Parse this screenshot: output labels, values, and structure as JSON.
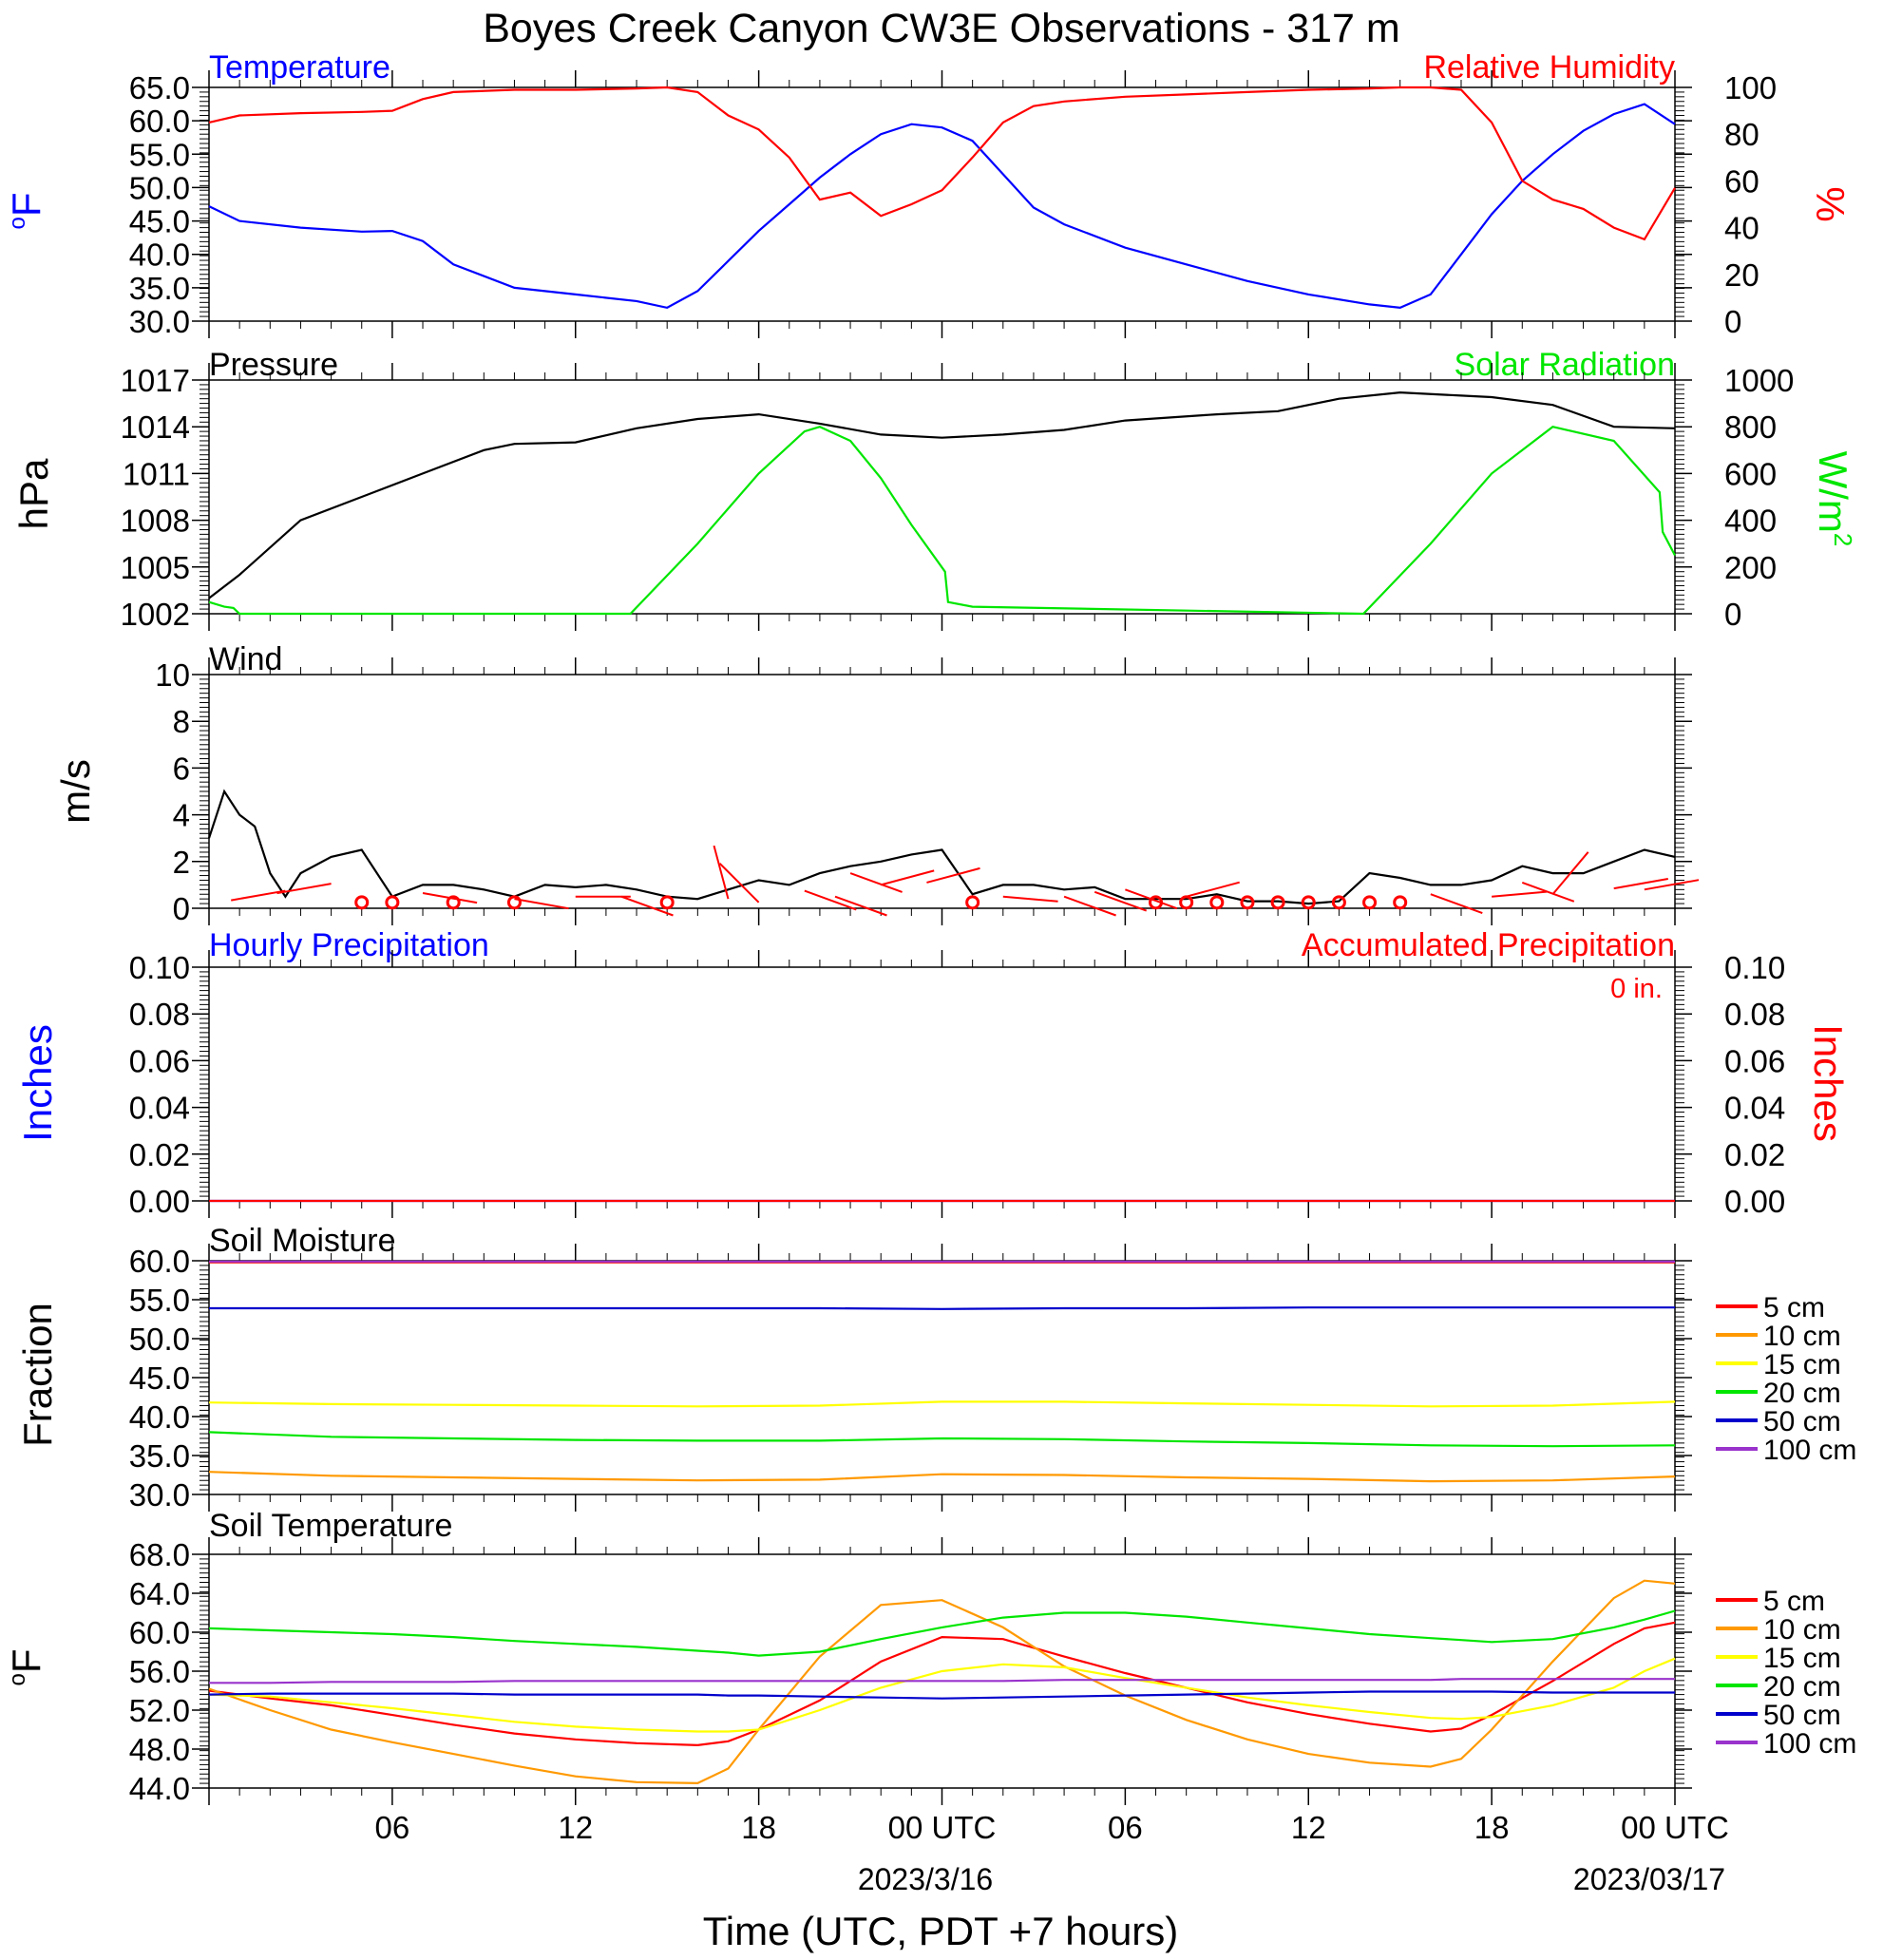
{
  "page": {
    "title": "Boyes Creek Canyon CW3E Observations - 317 m",
    "xlabel": "Time (UTC, PDT +7 hours)",
    "x_ticks": [
      "06",
      "12",
      "18",
      "00 UTC",
      "06",
      "12",
      "18",
      "00 UTC"
    ],
    "x_dates": [
      "2023/3/16",
      "2023/03/17"
    ],
    "units_degF_sup": "o",
    "units_degF": "F",
    "units_wm2_base": "W/m",
    "units_wm2_sup": "2"
  },
  "colors": {
    "blue": "#0000ff",
    "red": "#ff0000",
    "green": "#00e600",
    "black": "#000000",
    "orange": "#ff9900",
    "yellow": "#ffff00",
    "navy": "#0000cc",
    "purple": "#9933cc"
  },
  "chart_data": [
    {
      "id": "temp_rh",
      "type": "line",
      "title_left": "Temperature",
      "title_right": "Relative Humidity",
      "ylabel_left": "F",
      "ylabel_right": "%",
      "ylim_left": [
        30,
        65
      ],
      "ylim_right": [
        0,
        100
      ],
      "yticks_left": [
        "65.0",
        "60.0",
        "55.0",
        "50.0",
        "45.0",
        "40.0",
        "35.0",
        "30.0"
      ],
      "yticks_right": [
        "100",
        "80",
        "60",
        "40",
        "20",
        "0"
      ],
      "x_hours": [
        0,
        1,
        3,
        5,
        6,
        7,
        8,
        10,
        12,
        14,
        15,
        16,
        17,
        18,
        19,
        20,
        21,
        22,
        23,
        24,
        25,
        26,
        27,
        28,
        30,
        32,
        34,
        36,
        38,
        39,
        40,
        41,
        42,
        43,
        44,
        45,
        46,
        47,
        48
      ],
      "series": [
        {
          "name": "Temperature",
          "axis": "left",
          "color": "#0000ff",
          "values": [
            47.2,
            45.0,
            44.0,
            43.4,
            43.5,
            42.0,
            38.5,
            35.0,
            34.0,
            33.0,
            32.0,
            34.5,
            39.0,
            43.5,
            47.5,
            51.5,
            55.0,
            58.0,
            59.5,
            59.0,
            57.0,
            52.0,
            47.0,
            44.5,
            41.0,
            38.5,
            36.0,
            34.0,
            32.5,
            32.0,
            34.0,
            40.0,
            46.0,
            51.0,
            55.0,
            58.5,
            61.0,
            62.5,
            59.5
          ]
        },
        {
          "name": "Relative Humidity",
          "axis": "right",
          "color": "#ff0000",
          "values": [
            85.0,
            88.0,
            89.0,
            89.5,
            90.0,
            95.0,
            98.0,
            99.0,
            99.0,
            99.5,
            100.0,
            98.0,
            88.0,
            82.0,
            70.0,
            52.0,
            55.0,
            45.0,
            50.0,
            56.0,
            70.0,
            85.0,
            92.0,
            94.0,
            96.0,
            97.0,
            98.0,
            99.0,
            99.5,
            100.0,
            100.0,
            99.0,
            85.0,
            60.0,
            52.0,
            48.0,
            40.0,
            35.0,
            57.0
          ]
        }
      ]
    },
    {
      "id": "pressure_solar",
      "type": "line",
      "title_left": "Pressure",
      "title_right": "Solar Radiation",
      "ylabel_left": "hPa",
      "ylim_left": [
        1002,
        1017
      ],
      "ylim_right": [
        0,
        1000
      ],
      "yticks_left": [
        "1017",
        "1014",
        "1011",
        "1008",
        "1005",
        "1002"
      ],
      "yticks_right": [
        "1000",
        "800",
        "600",
        "400",
        "200",
        "0"
      ],
      "x_hours": [
        0,
        1,
        3,
        5,
        7,
        9,
        10,
        12,
        14,
        16,
        18,
        20,
        22,
        24,
        26,
        28,
        30,
        33,
        35,
        37,
        39,
        41,
        42,
        44,
        46,
        48
      ],
      "series": [
        {
          "name": "Pressure",
          "axis": "left",
          "color": "#000000",
          "values": [
            1003.0,
            1004.5,
            1008.0,
            1009.5,
            1011.0,
            1012.5,
            1012.9,
            1013.0,
            1013.9,
            1014.5,
            1014.8,
            1014.2,
            1013.5,
            1013.3,
            1013.5,
            1013.8,
            1014.4,
            1014.8,
            1015.0,
            1015.8,
            1016.2,
            1016.0,
            1015.9,
            1015.4,
            1014.0,
            1013.9
          ]
        },
        {
          "name": "Solar Radiation",
          "axis": "right",
          "color": "#00e600",
          "x_hours": [
            0,
            0.5,
            0.8,
            1.0,
            13.8,
            16,
            18,
            19.5,
            20,
            21,
            22,
            23,
            24.1,
            24.2,
            25,
            37.8,
            40,
            42,
            44,
            46,
            47.5,
            47.6,
            48
          ],
          "values": [
            50,
            30,
            25,
            0,
            0,
            300,
            600,
            780,
            800,
            740,
            580,
            380,
            180,
            50,
            30,
            0,
            300,
            600,
            800,
            740,
            520,
            350,
            250
          ]
        }
      ]
    },
    {
      "id": "wind",
      "type": "line",
      "title_left": "Wind",
      "ylabel_left": "m/s",
      "ylim_left": [
        0,
        10
      ],
      "yticks_left": [
        "10",
        "8",
        "6",
        "4",
        "2",
        "0"
      ],
      "x_hours": [
        0,
        0.5,
        1.0,
        1.5,
        2.0,
        2.5,
        3,
        4,
        5,
        6,
        7,
        8,
        9,
        10,
        11,
        12,
        13,
        14,
        15,
        16,
        17,
        18,
        19,
        20,
        21,
        22,
        23,
        24,
        25,
        26,
        27,
        28,
        29,
        30,
        31,
        32,
        33,
        34,
        35,
        36,
        37,
        38,
        39,
        40,
        41,
        42,
        43,
        44,
        45,
        46,
        47,
        48
      ],
      "series": [
        {
          "name": "Wind Speed",
          "color": "#000000",
          "values": [
            3.0,
            5.0,
            4.0,
            3.5,
            1.5,
            0.5,
            1.5,
            2.2,
            2.5,
            0.5,
            1.0,
            1.0,
            0.8,
            0.5,
            1.0,
            0.9,
            1.0,
            0.8,
            0.5,
            0.4,
            0.8,
            1.2,
            1.0,
            1.5,
            1.8,
            2.0,
            2.3,
            2.5,
            0.6,
            1.0,
            1.0,
            0.8,
            0.9,
            0.4,
            0.4,
            0.4,
            0.6,
            0.3,
            0.3,
            0.2,
            0.3,
            1.5,
            1.3,
            1.0,
            1.0,
            1.2,
            1.8,
            1.5,
            1.5,
            2.0,
            2.5,
            2.2
          ]
        }
      ],
      "barbs": [
        {
          "hour": 2.5,
          "speed": 1.5,
          "dir": 260
        },
        {
          "hour": 4,
          "speed": 2.1,
          "dir": 260
        },
        {
          "hour": 7,
          "speed": 1.3,
          "dir": 100
        },
        {
          "hour": 10,
          "speed": 0.8,
          "dir": 100
        },
        {
          "hour": 12,
          "speed": 1.0,
          "dir": 90
        },
        {
          "hour": 13.5,
          "speed": 1.0,
          "dir": 110
        },
        {
          "hour": 17,
          "speed": 0.8,
          "dir": 345
        },
        {
          "hour": 18,
          "speed": 0.5,
          "dir": 315
        },
        {
          "hour": 19.5,
          "speed": 1.5,
          "dir": 110
        },
        {
          "hour": 20.5,
          "speed": 1.0,
          "dir": 110
        },
        {
          "hour": 21,
          "speed": 3.0,
          "dir": 110
        },
        {
          "hour": 22,
          "speed": 2.0,
          "dir": 75
        },
        {
          "hour": 23.5,
          "speed": 2.2,
          "dir": 75
        },
        {
          "hour": 26,
          "speed": 1.0,
          "dir": 95
        },
        {
          "hour": 28,
          "speed": 1.0,
          "dir": 110
        },
        {
          "hour": 29,
          "speed": 1.4,
          "dir": 110
        },
        {
          "hour": 30,
          "speed": 1.6,
          "dir": 110
        },
        {
          "hour": 32,
          "speed": 1.0,
          "dir": 75
        },
        {
          "hour": 40,
          "speed": 1.2,
          "dir": 110
        },
        {
          "hour": 42,
          "speed": 1.0,
          "dir": 85
        },
        {
          "hour": 43,
          "speed": 2.2,
          "dir": 110
        },
        {
          "hour": 44,
          "speed": 1.2,
          "dir": 40
        },
        {
          "hour": 46,
          "speed": 1.7,
          "dir": 80
        },
        {
          "hour": 47,
          "speed": 1.6,
          "dir": 80
        }
      ],
      "calm_hours": [
        5,
        6,
        8,
        10,
        15,
        25,
        31,
        32,
        33,
        34,
        35,
        36,
        37,
        38,
        39
      ]
    },
    {
      "id": "precip",
      "type": "line",
      "title_left": "Hourly Precipitation",
      "title_right": "Accumulated Precipitation",
      "ylabel_left": "Inches",
      "ylabel_right": "Inches",
      "annotation": "0 in.",
      "ylim_left": [
        0,
        0.1
      ],
      "ylim_right": [
        0,
        0.1
      ],
      "yticks_left": [
        "0.10",
        "0.08",
        "0.06",
        "0.04",
        "0.02",
        "0.00"
      ],
      "yticks_right": [
        "0.10",
        "0.08",
        "0.06",
        "0.04",
        "0.02",
        "0.00"
      ],
      "x_hours": [
        0,
        48
      ],
      "series": [
        {
          "name": "Hourly Precipitation",
          "axis": "left",
          "color": "#0000ff",
          "values": [
            0,
            0
          ]
        },
        {
          "name": "Accumulated Precipitation",
          "axis": "right",
          "color": "#ff0000",
          "values": [
            0,
            0
          ]
        }
      ]
    },
    {
      "id": "soil_moisture",
      "type": "line",
      "title_left": "Soil Moisture",
      "ylabel_left": "Fraction",
      "ylim_left": [
        30,
        60
      ],
      "yticks_left": [
        "60.0",
        "55.0",
        "50.0",
        "45.0",
        "40.0",
        "35.0",
        "30.0"
      ],
      "x_hours": [
        0,
        4,
        8,
        12,
        16,
        20,
        24,
        28,
        32,
        36,
        40,
        44,
        48
      ],
      "series": [
        {
          "name": "5 cm",
          "color": "#ff0000",
          "values": [
            59.8,
            59.8,
            59.8,
            59.8,
            59.8,
            59.8,
            59.8,
            59.8,
            59.8,
            59.8,
            59.8,
            59.8,
            59.8
          ]
        },
        {
          "name": "10 cm",
          "color": "#ff9900",
          "values": [
            32.9,
            32.4,
            32.2,
            32.0,
            31.8,
            31.9,
            32.6,
            32.5,
            32.2,
            32.0,
            31.7,
            31.8,
            32.3
          ]
        },
        {
          "name": "15 cm",
          "color": "#ffff00",
          "values": [
            41.8,
            41.6,
            41.5,
            41.4,
            41.3,
            41.4,
            41.9,
            41.9,
            41.7,
            41.5,
            41.3,
            41.4,
            41.9
          ]
        },
        {
          "name": "20 cm",
          "color": "#00e600",
          "values": [
            38.0,
            37.4,
            37.2,
            37.0,
            36.9,
            36.9,
            37.2,
            37.1,
            36.8,
            36.6,
            36.3,
            36.2,
            36.3
          ]
        },
        {
          "name": "50 cm",
          "color": "#0000cc",
          "values": [
            53.9,
            53.9,
            53.9,
            53.9,
            53.9,
            53.9,
            53.8,
            53.9,
            53.9,
            54.0,
            54.0,
            54.0,
            54.0
          ]
        },
        {
          "name": "100 cm",
          "color": "#9933cc",
          "values": [
            59.9,
            59.9,
            59.9,
            59.9,
            59.9,
            59.9,
            59.9,
            59.9,
            59.9,
            59.9,
            59.9,
            59.9,
            59.9
          ]
        }
      ]
    },
    {
      "id": "soil_temp",
      "type": "line",
      "title_left": "Soil Temperature",
      "ylabel_left": "F",
      "ylim_left": [
        44,
        68
      ],
      "yticks_left": [
        "68.0",
        "64.0",
        "60.0",
        "56.0",
        "52.0",
        "48.0",
        "44.0"
      ],
      "x_hours": [
        0,
        2,
        4,
        6,
        8,
        10,
        12,
        14,
        16,
        17,
        18,
        20,
        22,
        24,
        26,
        28,
        30,
        32,
        34,
        36,
        38,
        40,
        41,
        42,
        44,
        46,
        47,
        48
      ],
      "series": [
        {
          "name": "5 cm",
          "color": "#ff0000",
          "values": [
            54.0,
            53.2,
            52.5,
            51.5,
            50.5,
            49.6,
            49.0,
            48.6,
            48.4,
            48.8,
            50.0,
            53.0,
            57.0,
            59.5,
            59.3,
            57.5,
            55.8,
            54.3,
            52.8,
            51.6,
            50.6,
            49.8,
            50.1,
            51.5,
            55.0,
            58.8,
            60.4,
            61.0
          ]
        },
        {
          "name": "10 cm",
          "color": "#ff9900",
          "values": [
            54.2,
            52.0,
            50.0,
            48.7,
            47.5,
            46.3,
            45.2,
            44.6,
            44.5,
            46.0,
            50.0,
            57.5,
            62.8,
            63.3,
            60.5,
            56.5,
            53.5,
            51.0,
            49.0,
            47.5,
            46.6,
            46.2,
            47.0,
            50.0,
            57.0,
            63.5,
            65.3,
            65.0
          ]
        },
        {
          "name": "15 cm",
          "color": "#ffff00",
          "values": [
            53.6,
            53.4,
            52.8,
            52.2,
            51.5,
            50.8,
            50.3,
            50.0,
            49.8,
            49.8,
            50.0,
            52.0,
            54.3,
            56.0,
            56.7,
            56.4,
            55.3,
            54.3,
            53.3,
            52.5,
            51.8,
            51.2,
            51.1,
            51.3,
            52.5,
            54.3,
            56.0,
            57.3
          ]
        },
        {
          "name": "20 cm",
          "color": "#00e600",
          "values": [
            60.4,
            60.2,
            60.0,
            59.8,
            59.5,
            59.1,
            58.8,
            58.5,
            58.1,
            57.9,
            57.6,
            58.0,
            59.3,
            60.5,
            61.5,
            62.0,
            62.0,
            61.6,
            61.0,
            60.4,
            59.8,
            59.4,
            59.2,
            59.0,
            59.3,
            60.5,
            61.3,
            62.2
          ]
        },
        {
          "name": "50 cm",
          "color": "#0000cc",
          "values": [
            53.6,
            53.7,
            53.7,
            53.7,
            53.7,
            53.6,
            53.6,
            53.6,
            53.6,
            53.5,
            53.5,
            53.4,
            53.3,
            53.2,
            53.3,
            53.4,
            53.5,
            53.6,
            53.7,
            53.8,
            53.9,
            53.9,
            53.9,
            53.9,
            53.8,
            53.8,
            53.8,
            53.8
          ]
        },
        {
          "name": "100 cm",
          "color": "#9933cc",
          "values": [
            54.8,
            54.8,
            54.9,
            54.9,
            54.9,
            55.0,
            55.0,
            55.0,
            55.0,
            55.0,
            55.0,
            55.0,
            55.0,
            55.0,
            55.0,
            55.1,
            55.1,
            55.1,
            55.1,
            55.1,
            55.1,
            55.1,
            55.2,
            55.2,
            55.2,
            55.2,
            55.2,
            55.2
          ]
        }
      ]
    }
  ]
}
